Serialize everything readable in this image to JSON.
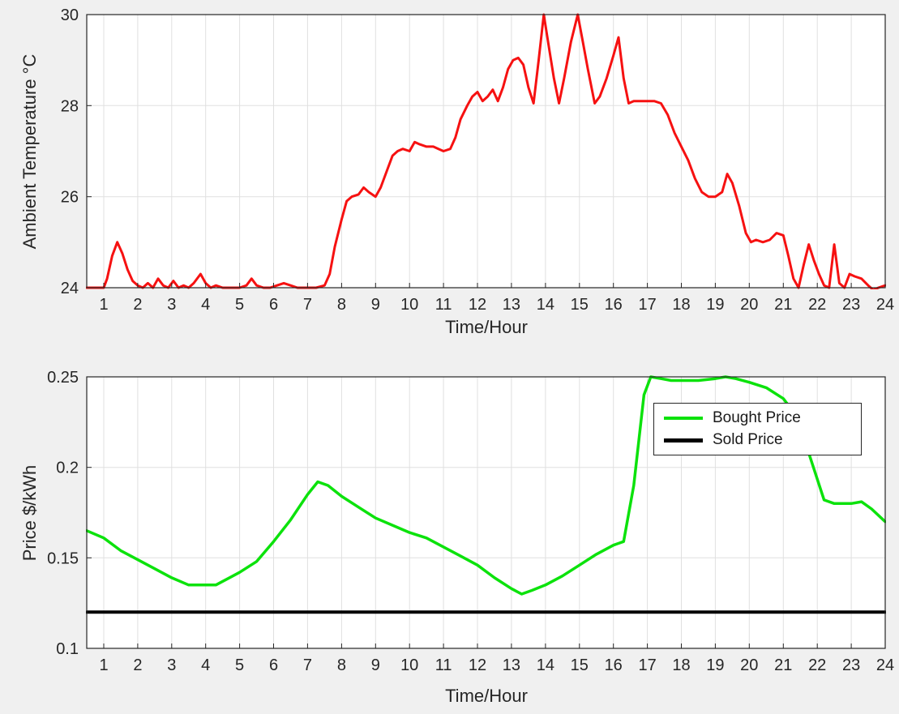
{
  "figure": {
    "background": "#f0f0f0",
    "plot_bg": "#ffffff",
    "grid_color": "#e0e0e0",
    "axis_color": "#262626",
    "text_color": "#262626"
  },
  "chart_data": [
    {
      "type": "line",
      "title": "",
      "xlabel": "Time/Hour",
      "ylabel": "Ambient Temperature °C",
      "xlim": [
        0.5,
        24
      ],
      "ylim": [
        24,
        30
      ],
      "xticks": [
        1,
        2,
        3,
        4,
        5,
        6,
        7,
        8,
        9,
        10,
        11,
        12,
        13,
        14,
        15,
        16,
        17,
        18,
        19,
        20,
        21,
        22,
        23,
        24
      ],
      "yticks": [
        24,
        26,
        28,
        30
      ],
      "grid": true,
      "legend": null,
      "series": [
        {
          "name": "Ambient Temperature",
          "color": "#f61111",
          "width": 3,
          "points": [
            [
              0.5,
              24
            ],
            [
              0.75,
              24
            ],
            [
              1,
              24
            ],
            [
              1.1,
              24.2
            ],
            [
              1.25,
              24.7
            ],
            [
              1.4,
              25
            ],
            [
              1.55,
              24.75
            ],
            [
              1.7,
              24.4
            ],
            [
              1.85,
              24.15
            ],
            [
              2,
              24.05
            ],
            [
              2.15,
              24
            ],
            [
              2.3,
              24.1
            ],
            [
              2.45,
              24
            ],
            [
              2.6,
              24.2
            ],
            [
              2.75,
              24.05
            ],
            [
              2.9,
              24
            ],
            [
              3.05,
              24.15
            ],
            [
              3.2,
              24
            ],
            [
              3.35,
              24.05
            ],
            [
              3.5,
              24
            ],
            [
              3.65,
              24.1
            ],
            [
              3.85,
              24.3
            ],
            [
              4,
              24.1
            ],
            [
              4.15,
              24
            ],
            [
              4.3,
              24.05
            ],
            [
              4.5,
              24
            ],
            [
              4.75,
              24
            ],
            [
              5,
              24
            ],
            [
              5.2,
              24.05
            ],
            [
              5.35,
              24.2
            ],
            [
              5.5,
              24.05
            ],
            [
              5.7,
              24
            ],
            [
              5.9,
              24
            ],
            [
              6.1,
              24.05
            ],
            [
              6.3,
              24.1
            ],
            [
              6.5,
              24.05
            ],
            [
              6.7,
              24
            ],
            [
              7,
              24
            ],
            [
              7.25,
              24
            ],
            [
              7.5,
              24.05
            ],
            [
              7.65,
              24.3
            ],
            [
              7.8,
              24.9
            ],
            [
              8,
              25.5
            ],
            [
              8.15,
              25.9
            ],
            [
              8.3,
              26
            ],
            [
              8.5,
              26.05
            ],
            [
              8.65,
              26.2
            ],
            [
              8.8,
              26.1
            ],
            [
              9,
              26
            ],
            [
              9.15,
              26.2
            ],
            [
              9.35,
              26.6
            ],
            [
              9.5,
              26.9
            ],
            [
              9.65,
              27
            ],
            [
              9.8,
              27.05
            ],
            [
              10,
              27
            ],
            [
              10.15,
              27.2
            ],
            [
              10.3,
              27.15
            ],
            [
              10.5,
              27.1
            ],
            [
              10.7,
              27.1
            ],
            [
              10.85,
              27.05
            ],
            [
              11,
              27
            ],
            [
              11.2,
              27.05
            ],
            [
              11.35,
              27.3
            ],
            [
              11.5,
              27.7
            ],
            [
              11.7,
              28
            ],
            [
              11.85,
              28.2
            ],
            [
              12,
              28.3
            ],
            [
              12.15,
              28.1
            ],
            [
              12.3,
              28.2
            ],
            [
              12.45,
              28.35
            ],
            [
              12.6,
              28.1
            ],
            [
              12.75,
              28.4
            ],
            [
              12.9,
              28.8
            ],
            [
              13.05,
              29
            ],
            [
              13.2,
              29.05
            ],
            [
              13.35,
              28.9
            ],
            [
              13.5,
              28.4
            ],
            [
              13.65,
              28.05
            ],
            [
              13.8,
              29
            ],
            [
              13.95,
              30
            ],
            [
              14.1,
              29.3
            ],
            [
              14.25,
              28.6
            ],
            [
              14.4,
              28.05
            ],
            [
              14.55,
              28.6
            ],
            [
              14.75,
              29.4
            ],
            [
              14.95,
              30
            ],
            [
              15.1,
              29.4
            ],
            [
              15.25,
              28.8
            ],
            [
              15.45,
              28.05
            ],
            [
              15.6,
              28.2
            ],
            [
              15.8,
              28.6
            ],
            [
              16,
              29.1
            ],
            [
              16.15,
              29.5
            ],
            [
              16.3,
              28.6
            ],
            [
              16.45,
              28.05
            ],
            [
              16.6,
              28.1
            ],
            [
              16.8,
              28.1
            ],
            [
              17,
              28.1
            ],
            [
              17.2,
              28.1
            ],
            [
              17.4,
              28.05
            ],
            [
              17.6,
              27.8
            ],
            [
              17.8,
              27.4
            ],
            [
              18,
              27.1
            ],
            [
              18.2,
              26.8
            ],
            [
              18.4,
              26.4
            ],
            [
              18.6,
              26.1
            ],
            [
              18.8,
              26
            ],
            [
              19,
              26
            ],
            [
              19.2,
              26.1
            ],
            [
              19.35,
              26.5
            ],
            [
              19.5,
              26.3
            ],
            [
              19.7,
              25.8
            ],
            [
              19.9,
              25.2
            ],
            [
              20.05,
              25
            ],
            [
              20.2,
              25.05
            ],
            [
              20.4,
              25
            ],
            [
              20.6,
              25.05
            ],
            [
              20.8,
              25.2
            ],
            [
              21,
              25.15
            ],
            [
              21.15,
              24.7
            ],
            [
              21.3,
              24.2
            ],
            [
              21.45,
              24
            ],
            [
              21.6,
              24.5
            ],
            [
              21.75,
              24.95
            ],
            [
              21.9,
              24.6
            ],
            [
              22.05,
              24.3
            ],
            [
              22.2,
              24.05
            ],
            [
              22.35,
              24
            ],
            [
              22.5,
              24.95
            ],
            [
              22.65,
              24.1
            ],
            [
              22.8,
              24
            ],
            [
              22.95,
              24.3
            ],
            [
              23.1,
              24.25
            ],
            [
              23.3,
              24.2
            ],
            [
              23.5,
              24.05
            ],
            [
              23.65,
              23.95
            ],
            [
              23.8,
              24
            ],
            [
              24,
              24.05
            ]
          ]
        }
      ]
    },
    {
      "type": "line",
      "title": "",
      "xlabel": "Time/Hour",
      "ylabel": "Price $/kWh",
      "xlim": [
        0.5,
        24
      ],
      "ylim": [
        0.1,
        0.25
      ],
      "xticks": [
        1,
        2,
        3,
        4,
        5,
        6,
        7,
        8,
        9,
        10,
        11,
        12,
        13,
        14,
        15,
        16,
        17,
        18,
        19,
        20,
        21,
        22,
        23,
        24
      ],
      "yticks": [
        0.1,
        0.15,
        0.2,
        0.25
      ],
      "ytick_labels": [
        "0.1",
        "0.15",
        "0.2",
        "0.25"
      ],
      "grid": true,
      "legend": {
        "position": "northeast",
        "entries": [
          "Bought Price",
          "Sold Price"
        ]
      },
      "series": [
        {
          "name": "Bought Price",
          "color": "#0ce20c",
          "width": 3.5,
          "points": [
            [
              0.5,
              0.165
            ],
            [
              1,
              0.161
            ],
            [
              1.5,
              0.154
            ],
            [
              2,
              0.149
            ],
            [
              2.5,
              0.144
            ],
            [
              3,
              0.139
            ],
            [
              3.5,
              0.135
            ],
            [
              4,
              0.135
            ],
            [
              4.3,
              0.135
            ],
            [
              4.7,
              0.139
            ],
            [
              5,
              0.142
            ],
            [
              5.5,
              0.148
            ],
            [
              6,
              0.159
            ],
            [
              6.5,
              0.171
            ],
            [
              7,
              0.185
            ],
            [
              7.3,
              0.192
            ],
            [
              7.6,
              0.19
            ],
            [
              8,
              0.184
            ],
            [
              8.5,
              0.178
            ],
            [
              9,
              0.172
            ],
            [
              9.5,
              0.168
            ],
            [
              10,
              0.164
            ],
            [
              10.5,
              0.161
            ],
            [
              11,
              0.156
            ],
            [
              11.5,
              0.151
            ],
            [
              12,
              0.146
            ],
            [
              12.5,
              0.139
            ],
            [
              13,
              0.133
            ],
            [
              13.3,
              0.13
            ],
            [
              13.6,
              0.132
            ],
            [
              14,
              0.135
            ],
            [
              14.5,
              0.14
            ],
            [
              15,
              0.146
            ],
            [
              15.5,
              0.152
            ],
            [
              16,
              0.157
            ],
            [
              16.3,
              0.159
            ],
            [
              16.6,
              0.19
            ],
            [
              16.9,
              0.24
            ],
            [
              17.1,
              0.25
            ],
            [
              17.4,
              0.249
            ],
            [
              17.7,
              0.248
            ],
            [
              18,
              0.248
            ],
            [
              18.5,
              0.248
            ],
            [
              19,
              0.249
            ],
            [
              19.3,
              0.25
            ],
            [
              19.6,
              0.249
            ],
            [
              20,
              0.247
            ],
            [
              20.5,
              0.244
            ],
            [
              21,
              0.238
            ],
            [
              21.4,
              0.228
            ],
            [
              21.8,
              0.205
            ],
            [
              22.2,
              0.182
            ],
            [
              22.5,
              0.18
            ],
            [
              23,
              0.18
            ],
            [
              23.3,
              0.181
            ],
            [
              23.6,
              0.177
            ],
            [
              24,
              0.17
            ]
          ]
        },
        {
          "name": "Sold Price",
          "color": "#000000",
          "width": 4,
          "points": [
            [
              0.5,
              0.12
            ],
            [
              24,
              0.12
            ]
          ]
        }
      ]
    }
  ]
}
